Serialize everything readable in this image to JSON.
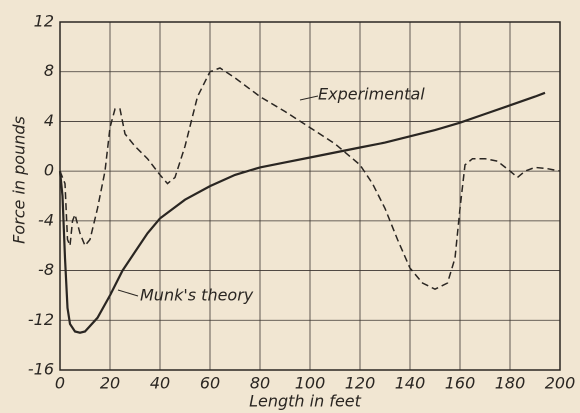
{
  "chart_data": {
    "type": "line",
    "x_label": "Length in feet",
    "y_label": "Force in pounds",
    "annotations": [
      "Experimental",
      "Munk's theory"
    ],
    "series": [
      {
        "name": "Munk's theory",
        "color": "#2a2622",
        "dash": false,
        "x": [
          0,
          1,
          2,
          3,
          4,
          6,
          8,
          10,
          15,
          20,
          25,
          30,
          35,
          40,
          50,
          60,
          70,
          80,
          90,
          100,
          110,
          120,
          130,
          140,
          150,
          160,
          170,
          180,
          190,
          194
        ],
        "values": [
          0,
          -2,
          -7,
          -11,
          -12.3,
          -12.9,
          -13,
          -12.9,
          -11.8,
          -10,
          -8,
          -6.5,
          -5,
          -3.8,
          -2.3,
          -1.2,
          -0.3,
          0.3,
          0.7,
          1.1,
          1.5,
          1.9,
          2.3,
          2.8,
          3.3,
          3.9,
          4.6,
          5.3,
          6,
          6.3
        ]
      },
      {
        "name": "Experimental",
        "color": "#2a2622",
        "dash": true,
        "x": [
          0,
          2,
          3,
          4,
          5,
          6,
          8,
          10,
          12,
          15,
          18,
          20,
          22,
          24,
          26,
          30,
          35,
          40,
          43,
          46,
          50,
          55,
          60,
          64,
          70,
          80,
          90,
          100,
          110,
          120,
          125,
          130,
          135,
          140,
          145,
          150,
          155,
          158,
          160,
          162,
          165,
          170,
          175,
          180,
          183,
          186,
          190,
          195,
          200
        ],
        "values": [
          0,
          -1,
          -5.5,
          -6,
          -4,
          -3.5,
          -5,
          -6,
          -5.5,
          -3,
          0,
          3.5,
          5,
          5,
          3,
          2,
          1,
          -0.3,
          -1,
          -0.5,
          2,
          6,
          8,
          8.3,
          7.5,
          6,
          4.8,
          3.5,
          2.2,
          0.5,
          -1,
          -3,
          -5.5,
          -7.8,
          -9,
          -9.5,
          -9,
          -7,
          -3,
          0.5,
          1,
          1,
          0.8,
          0,
          -0.5,
          0,
          0.3,
          0.2,
          0
        ]
      }
    ],
    "xlim": [
      0,
      200
    ],
    "xticks": [
      0,
      20,
      40,
      60,
      80,
      100,
      120,
      140,
      160,
      180,
      200
    ],
    "ylim": [
      -16,
      12
    ],
    "yticks": [
      -16,
      -12,
      -8,
      -4,
      0,
      4,
      8,
      12
    ],
    "grid": true
  }
}
